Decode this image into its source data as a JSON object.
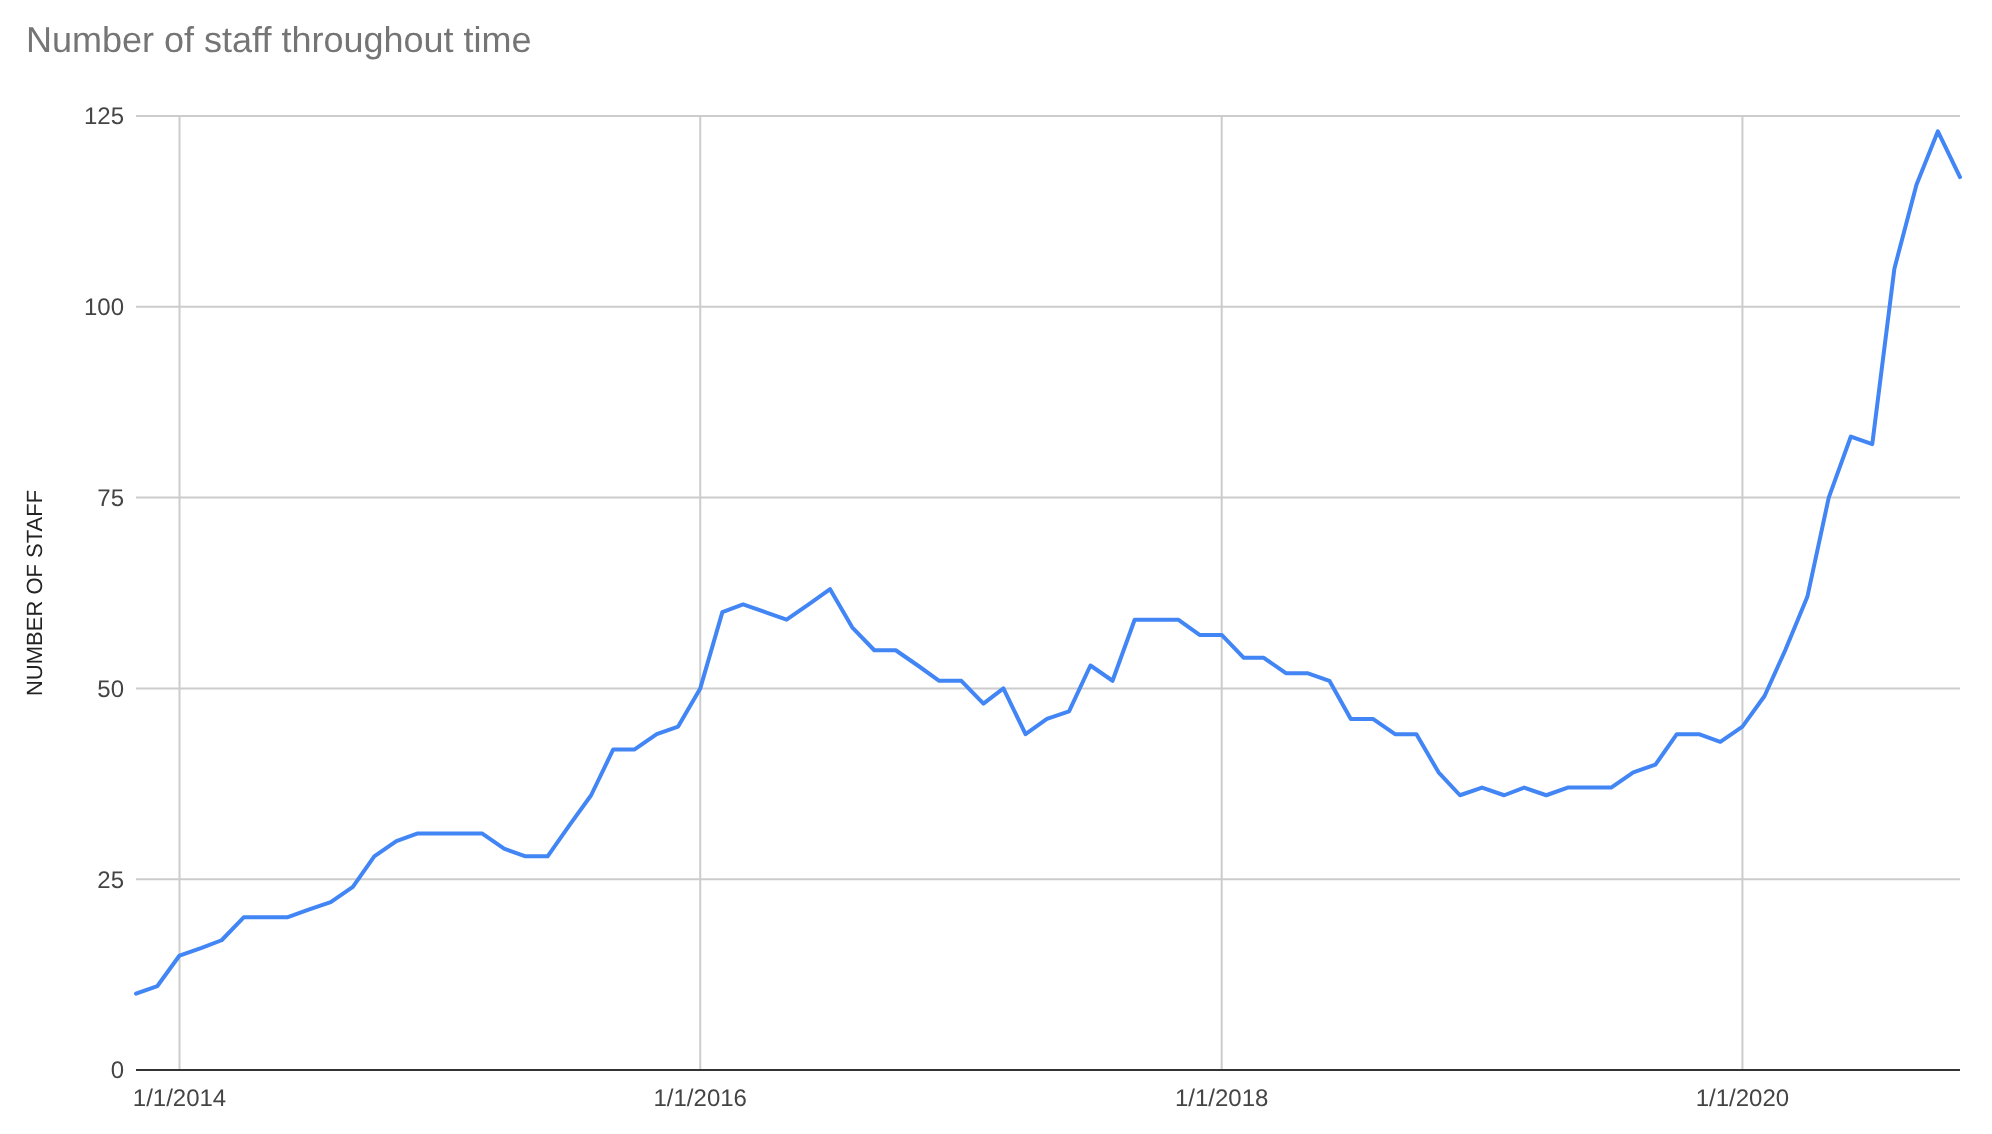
{
  "chart_data": {
    "type": "line",
    "title": "Number of staff throughout time",
    "ylabel": "NUMBER OF STAFF",
    "x": [
      "2013-11",
      "2013-12",
      "2014-01",
      "2014-02",
      "2014-03",
      "2014-04",
      "2014-05",
      "2014-06",
      "2014-07",
      "2014-08",
      "2014-09",
      "2014-10",
      "2014-11",
      "2014-12",
      "2015-01",
      "2015-02",
      "2015-03",
      "2015-04",
      "2015-05",
      "2015-06",
      "2015-07",
      "2015-08",
      "2015-09",
      "2015-10",
      "2015-11",
      "2015-12",
      "2016-01",
      "2016-02",
      "2016-03",
      "2016-04",
      "2016-05",
      "2016-06",
      "2016-07",
      "2016-08",
      "2016-09",
      "2016-10",
      "2016-11",
      "2016-12",
      "2017-01",
      "2017-02",
      "2017-03",
      "2017-04",
      "2017-05",
      "2017-06",
      "2017-07",
      "2017-08",
      "2017-09",
      "2017-10",
      "2017-11",
      "2017-12",
      "2018-01",
      "2018-02",
      "2018-03",
      "2018-04",
      "2018-05",
      "2018-06",
      "2018-07",
      "2018-08",
      "2018-09",
      "2018-10",
      "2018-11",
      "2018-12",
      "2019-01",
      "2019-02",
      "2019-03",
      "2019-04",
      "2019-05",
      "2019-06",
      "2019-07",
      "2019-08",
      "2019-09",
      "2019-10",
      "2019-11",
      "2019-12",
      "2020-01",
      "2020-02",
      "2020-03",
      "2020-04",
      "2020-05",
      "2020-06",
      "2020-07",
      "2020-08",
      "2020-09",
      "2020-10",
      "2020-11"
    ],
    "values": [
      10,
      11,
      15,
      16,
      17,
      20,
      20,
      20,
      21,
      22,
      24,
      28,
      30,
      31,
      31,
      31,
      31,
      29,
      28,
      28,
      32,
      36,
      42,
      42,
      44,
      45,
      50,
      60,
      61,
      60,
      59,
      61,
      63,
      58,
      55,
      55,
      53,
      51,
      51,
      48,
      50,
      44,
      46,
      47,
      53,
      51,
      59,
      59,
      59,
      57,
      57,
      54,
      54,
      52,
      52,
      51,
      46,
      46,
      44,
      44,
      39,
      36,
      37,
      36,
      37,
      36,
      37,
      37,
      37,
      39,
      40,
      44,
      44,
      43,
      45,
      49,
      55,
      62,
      75,
      83,
      82,
      105,
      116,
      123,
      117
    ],
    "color": "#4285f4",
    "xlim": [
      "2013-11",
      "2020-11"
    ],
    "xticks": [
      {
        "value": "2014-01-01",
        "label": "1/1/2014"
      },
      {
        "value": "2016-01-01",
        "label": "1/1/2016"
      },
      {
        "value": "2018-01-01",
        "label": "1/1/2018"
      },
      {
        "value": "2020-01-01",
        "label": "1/1/2020"
      }
    ],
    "ylim": [
      0,
      125
    ],
    "yticks": [
      0,
      25,
      50,
      75,
      100,
      125
    ],
    "grid": true
  }
}
